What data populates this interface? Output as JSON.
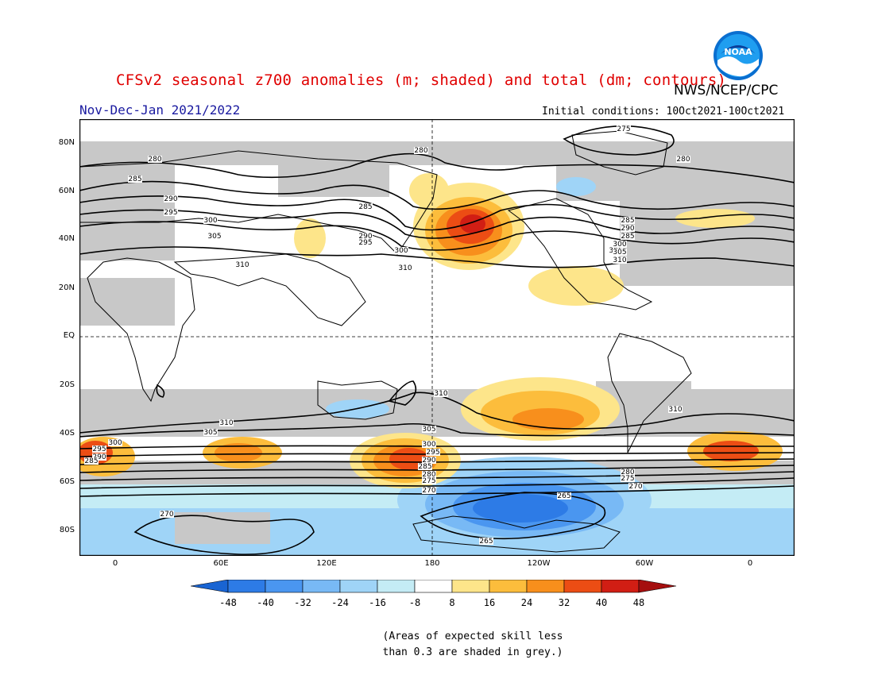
{
  "header": {
    "title": "CFSv2 seasonal z700 anomalies (m; shaded) and total (dm; contours)",
    "agency": "NWS/NCEP/CPC",
    "period": "Nov-Dec-Jan 2021/2022",
    "initial_conditions": "Initial conditions: 10Oct2021-10Oct2021",
    "logo_text": "NOAA"
  },
  "map": {
    "lat_labels": [
      "80N",
      "60N",
      "40N",
      "20N",
      "EQ",
      "20S",
      "40S",
      "60S",
      "80S"
    ],
    "lon_labels": [
      "0",
      "60E",
      "120E",
      "180",
      "120W",
      "60W",
      "0"
    ],
    "contour_labels": {
      "north": [
        "275",
        "280",
        "280",
        "280",
        "285",
        "285",
        "290",
        "290",
        "295",
        "295",
        "300",
        "300",
        "305",
        "305",
        "310",
        "310",
        "310",
        "285",
        "290",
        "285",
        "300",
        "305",
        "310"
      ],
      "south": [
        "310",
        "310",
        "310",
        "305",
        "305",
        "300",
        "300",
        "295",
        "295",
        "290",
        "290",
        "285",
        "285",
        "280",
        "280",
        "275",
        "275",
        "270",
        "270",
        "265",
        "265",
        "270"
      ]
    }
  },
  "colorbar": {
    "tick_labels": [
      "-48",
      "-40",
      "-32",
      "-24",
      "-16",
      "-8",
      "8",
      "16",
      "24",
      "32",
      "40",
      "48"
    ],
    "colors": [
      "#1964d2",
      "#2d7be6",
      "#4a96f0",
      "#78b9f5",
      "#9fd4f7",
      "#c4ecf5",
      "#ffffff",
      "#fde58a",
      "#fcbd3c",
      "#f88f1c",
      "#ec4d14",
      "#d11e14",
      "#a50f0f"
    ]
  },
  "footnote": {
    "line1": "(Areas of expected skill less",
    "line2": "than 0.3 are shaded in grey.)"
  },
  "colors": {
    "grey_mask": "#c8c8c8",
    "title_red": "#e00000",
    "period_blue": "#1a1aa0"
  }
}
